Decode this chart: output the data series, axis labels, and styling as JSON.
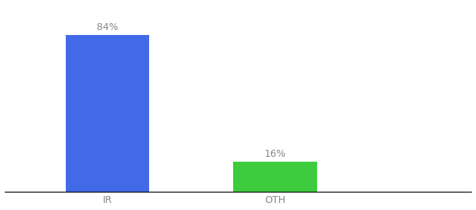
{
  "categories": [
    "IR",
    "OTH"
  ],
  "values": [
    84,
    16
  ],
  "bar_colors": [
    "#4169e8",
    "#3dcc3d"
  ],
  "label_texts": [
    "84%",
    "16%"
  ],
  "background_color": "#ffffff",
  "text_color": "#888888",
  "label_fontsize": 10,
  "tick_fontsize": 10,
  "ylim": [
    0,
    100
  ],
  "bar_width": 0.18,
  "x_positions": [
    0.22,
    0.58
  ],
  "xlim": [
    0.0,
    1.0
  ]
}
